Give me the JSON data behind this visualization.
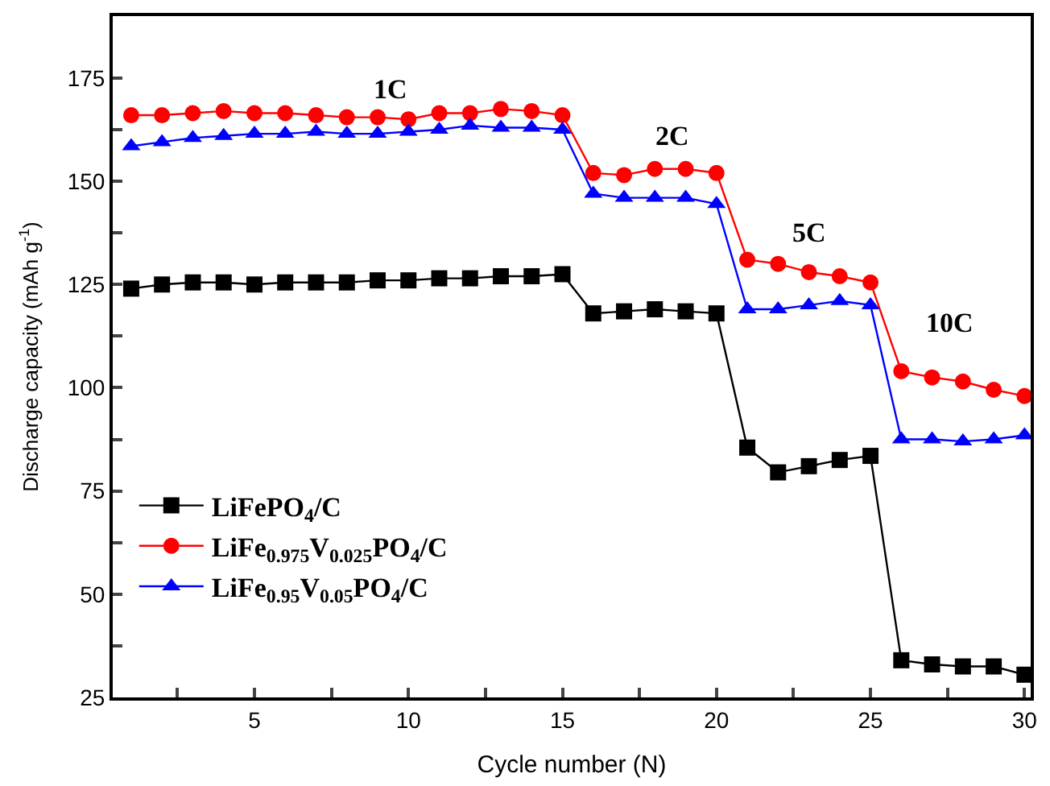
{
  "chart_data": {
    "type": "line",
    "xlabel": "Cycle number (N)",
    "ylabel": "Discharge capacity (mAh g$^{-1}$)",
    "x": [
      1,
      2,
      3,
      4,
      5,
      6,
      7,
      8,
      9,
      10,
      11,
      12,
      13,
      14,
      15,
      16,
      17,
      18,
      19,
      20,
      21,
      22,
      23,
      24,
      25,
      26,
      27,
      28,
      29,
      30
    ],
    "xlim": [
      0.4,
      30.2
    ],
    "ylim": [
      25,
      190
    ],
    "xticks": [
      {
        "value": 2.5,
        "label": null
      },
      5,
      {
        "value": 7.5,
        "label": null
      },
      10,
      {
        "value": 12.5,
        "label": null
      },
      15,
      {
        "value": 17.5,
        "label": null
      },
      20,
      {
        "value": 22.5,
        "label": null
      },
      25,
      {
        "value": 27.5,
        "label": null
      },
      30
    ],
    "yticks": [
      25,
      {
        "value": 37.5,
        "label": null
      },
      50,
      {
        "value": 62.5,
        "label": null
      },
      75,
      {
        "value": 87.5,
        "label": null
      },
      100,
      {
        "value": 112.5,
        "label": null
      },
      125,
      {
        "value": 137.5,
        "label": null
      },
      150,
      {
        "value": 162.5,
        "label": null
      },
      175
    ],
    "series": [
      {
        "name": "LiFePO$_{4}$/C",
        "color": "#000000",
        "marker": "square",
        "values": [
          124,
          125,
          125.5,
          125.5,
          125,
          125.5,
          125.5,
          125.5,
          126,
          126,
          126.5,
          126.5,
          127,
          127,
          127.5,
          118,
          118.5,
          119,
          118.5,
          118,
          85.5,
          79.5,
          81,
          82.5,
          83.5,
          34,
          33,
          32.5,
          32.5,
          30.5
        ]
      },
      {
        "name": "LiFe$_{0.975}$V$_{0.025}$PO$_{4}$/C",
        "color": "#ff0000",
        "marker": "circle",
        "values": [
          166,
          166,
          166.5,
          167,
          166.5,
          166.5,
          166,
          165.5,
          165.5,
          165,
          166.5,
          166.5,
          167.5,
          167,
          166,
          152,
          151.5,
          153,
          153,
          152,
          131,
          130,
          128,
          127,
          125.5,
          104,
          102.5,
          101.5,
          99.5,
          98
        ]
      },
      {
        "name": "LiFe$_{0.95}$V$_{0.05}$PO$_{4}$/C",
        "color": "#0000ff",
        "marker": "triangle",
        "values": [
          158.5,
          159.5,
          160.5,
          161,
          161.5,
          161.5,
          162,
          161.5,
          161.5,
          162,
          162.5,
          163.5,
          163,
          163,
          162.5,
          147,
          146,
          146,
          146,
          144.5,
          119,
          119,
          120,
          121,
          120,
          87.5,
          87.5,
          87,
          87.5,
          88.5
        ]
      }
    ],
    "annotations": [
      "1C",
      "2C",
      "5C",
      "10C"
    ],
    "legend": "bottom left",
    "line_style": "solid"
  }
}
